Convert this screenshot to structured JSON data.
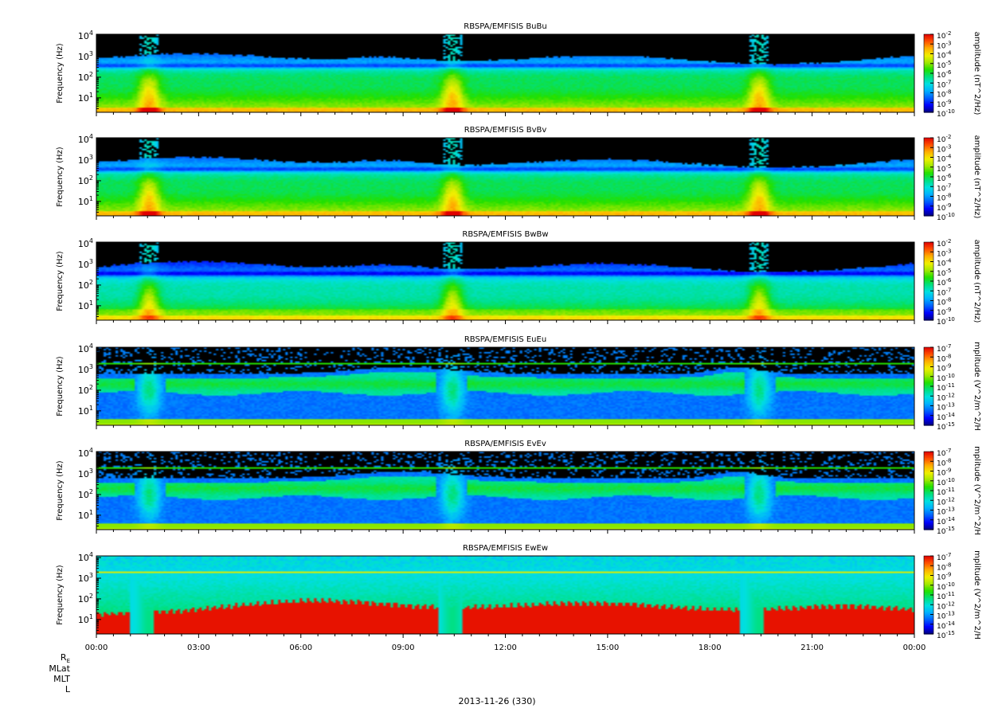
{
  "date_label": "2013-11-26 (330)",
  "ephemeris_labels": [
    {
      "main": "R",
      "sub": "E"
    },
    {
      "main": "MLat",
      "sub": ""
    },
    {
      "main": "MLT",
      "sub": ""
    },
    {
      "main": "L",
      "sub": ""
    }
  ],
  "colormap": [
    "#000080",
    "#0000ff",
    "#0060ff",
    "#00b0ff",
    "#00e0e0",
    "#00e080",
    "#20e000",
    "#a0e800",
    "#f0f000",
    "#ffb000",
    "#ff5000",
    "#e00000"
  ],
  "background_color": "#000000",
  "chart_data": [
    {
      "type": "heatmap",
      "title": "RBSPA/EMFISIS  BuBu",
      "ylabel": "Frequency (Hz)",
      "y_scale": "log",
      "ylim": [
        2,
        12000
      ],
      "yticks": [
        {
          "base": "10",
          "exp": "4"
        },
        {
          "base": "10",
          "exp": "3"
        },
        {
          "base": "10",
          "exp": "2"
        },
        {
          "base": "10",
          "exp": "1"
        }
      ],
      "colorbar": {
        "label": "amplitude (nT^2/Hz)",
        "log_range": [
          -10,
          -2
        ],
        "tick_exps": [
          "-2",
          "-3",
          "-4",
          "-5",
          "-6",
          "-7",
          "-8",
          "-9",
          "-10"
        ]
      },
      "show_xticklabels": false
    },
    {
      "type": "heatmap",
      "title": "RBSPA/EMFISIS  BvBv",
      "ylabel": "Frequency (Hz)",
      "y_scale": "log",
      "ylim": [
        2,
        12000
      ],
      "yticks": [
        {
          "base": "10",
          "exp": "4"
        },
        {
          "base": "10",
          "exp": "3"
        },
        {
          "base": "10",
          "exp": "2"
        },
        {
          "base": "10",
          "exp": "1"
        }
      ],
      "colorbar": {
        "label": "amplitude (nT^2/Hz)",
        "log_range": [
          -10,
          -2
        ],
        "tick_exps": [
          "-2",
          "-3",
          "-4",
          "-5",
          "-6",
          "-7",
          "-8",
          "-9",
          "-10"
        ]
      },
      "show_xticklabels": false
    },
    {
      "type": "heatmap",
      "title": "RBSPA/EMFISIS  BwBw",
      "ylabel": "Frequency (Hz)",
      "y_scale": "log",
      "ylim": [
        2,
        12000
      ],
      "yticks": [
        {
          "base": "10",
          "exp": "4"
        },
        {
          "base": "10",
          "exp": "3"
        },
        {
          "base": "10",
          "exp": "2"
        },
        {
          "base": "10",
          "exp": "1"
        }
      ],
      "colorbar": {
        "label": "amplitude (nT^2/Hz)",
        "log_range": [
          -10,
          -2
        ],
        "tick_exps": [
          "-2",
          "-3",
          "-4",
          "-5",
          "-6",
          "-7",
          "-8",
          "-9",
          "-10"
        ]
      },
      "show_xticklabels": false
    },
    {
      "type": "heatmap",
      "title": "RBSPA/EMFISIS  EuEu",
      "ylabel": "Frequency (Hz)",
      "y_scale": "log",
      "ylim": [
        2,
        12000
      ],
      "yticks": [
        {
          "base": "10",
          "exp": "4"
        },
        {
          "base": "10",
          "exp": "3"
        },
        {
          "base": "10",
          "exp": "2"
        },
        {
          "base": "10",
          "exp": "1"
        }
      ],
      "colorbar": {
        "label": "mplitude (V^2/m^2/H",
        "log_range": [
          -15,
          -7
        ],
        "tick_exps": [
          "-7",
          "-8",
          "-9",
          "-10",
          "-11",
          "-12",
          "-13",
          "-14",
          "-15"
        ]
      },
      "show_xticklabels": false
    },
    {
      "type": "heatmap",
      "title": "RBSPA/EMFISIS  EvEv",
      "ylabel": "Frequency (Hz)",
      "y_scale": "log",
      "ylim": [
        2,
        12000
      ],
      "yticks": [
        {
          "base": "10",
          "exp": "4"
        },
        {
          "base": "10",
          "exp": "3"
        },
        {
          "base": "10",
          "exp": "2"
        },
        {
          "base": "10",
          "exp": "1"
        }
      ],
      "colorbar": {
        "label": "mplitude (V^2/m^2/H",
        "log_range": [
          -15,
          -7
        ],
        "tick_exps": [
          "-7",
          "-8",
          "-9",
          "-10",
          "-11",
          "-12",
          "-13",
          "-14",
          "-15"
        ]
      },
      "show_xticklabels": false
    },
    {
      "type": "heatmap",
      "title": "RBSPA/EMFISIS  EwEw",
      "ylabel": "Frequency (Hz)",
      "y_scale": "log",
      "ylim": [
        2,
        12000
      ],
      "yticks": [
        {
          "base": "10",
          "exp": "4"
        },
        {
          "base": "10",
          "exp": "3"
        },
        {
          "base": "10",
          "exp": "2"
        },
        {
          "base": "10",
          "exp": "1"
        }
      ],
      "colorbar": {
        "label": "mplitude (V^2/m^2/H",
        "log_range": [
          -15,
          -7
        ],
        "tick_exps": [
          "-7",
          "-8",
          "-9",
          "-10",
          "-11",
          "-12",
          "-13",
          "-14",
          "-15"
        ]
      },
      "show_xticklabels": true
    }
  ],
  "x_axis": {
    "range_hours": [
      0,
      24
    ],
    "major_tick_hours": [
      0,
      3,
      6,
      9,
      12,
      15,
      18,
      21,
      24
    ],
    "tick_labels": [
      "00:00",
      "03:00",
      "06:00",
      "09:00",
      "12:00",
      "15:00",
      "18:00",
      "21:00",
      "00:00"
    ],
    "minor_ticks_per_major": 6
  },
  "features": {
    "perigee_hours": [
      1.55,
      10.45,
      19.45
    ],
    "magnetic_upper_band_hz": [
      700,
      800,
      700
    ],
    "chorus_band_hz": [
      80,
      300
    ]
  }
}
